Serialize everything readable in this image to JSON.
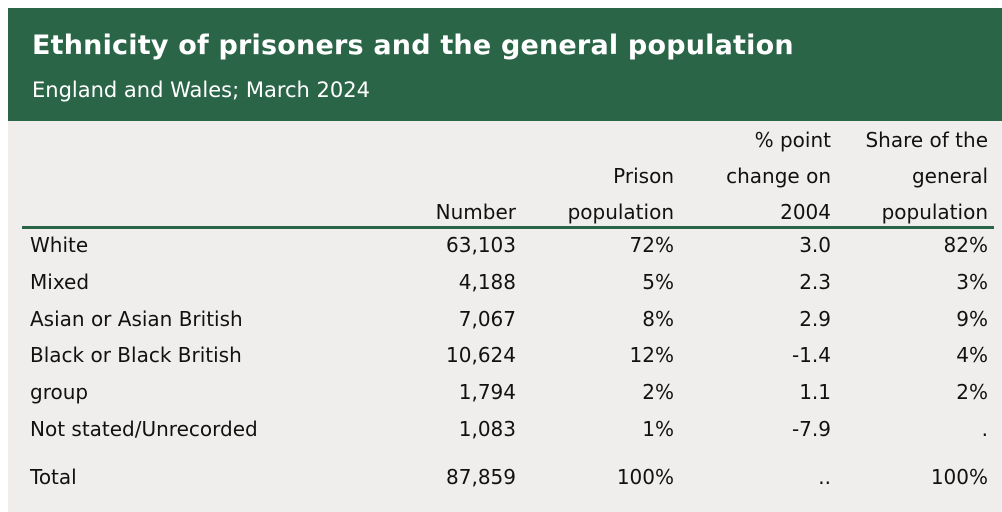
{
  "chart_data": {
    "type": "table",
    "title": "Ethnicity of prisoners and the general population",
    "subtitle": "England and Wales; March 2024",
    "columns": [
      {
        "key": "number",
        "label_lines": [
          "Number"
        ]
      },
      {
        "key": "prison",
        "label_lines": [
          "Prison",
          "population"
        ]
      },
      {
        "key": "change",
        "label_lines": [
          "% point",
          "change on",
          "2004"
        ]
      },
      {
        "key": "share",
        "label_lines": [
          "Share of the",
          "general",
          "population"
        ]
      }
    ],
    "rows": [
      {
        "label": "White",
        "number": "63,103",
        "prison": "72%",
        "change": "3.0",
        "share": "82%"
      },
      {
        "label": "Mixed",
        "number": "4,188",
        "prison": "5%",
        "change": "2.3",
        "share": "3%"
      },
      {
        "label": "Asian or Asian British",
        "number": "7,067",
        "prison": "8%",
        "change": "2.9",
        "share": "9%"
      },
      {
        "label": "Black or Black British",
        "number": "10,624",
        "prison": "12%",
        "change": "-1.4",
        "share": "4%"
      },
      {
        "label": "group",
        "number": "1,794",
        "prison": "2%",
        "change": "1.1",
        "share": "2%"
      },
      {
        "label": "Not stated/Unrecorded",
        "number": "1,083",
        "prison": "1%",
        "change": "-7.9",
        "share": "."
      },
      {
        "label": "Total",
        "number": "87,859",
        "prison": "100%",
        "change": "..",
        "share": "100%"
      }
    ]
  },
  "colors": {
    "header_bg": "#2a6547",
    "card_bg": "#efeeec",
    "text": "#111111"
  }
}
